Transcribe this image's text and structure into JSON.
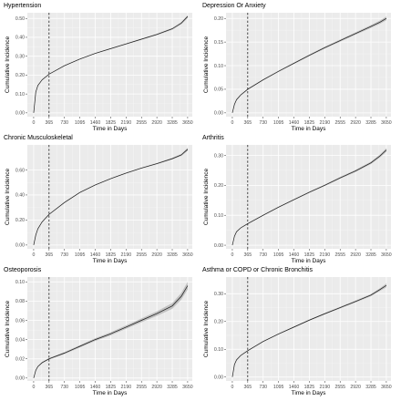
{
  "chart_data": [
    {
      "type": "line",
      "title": "Hypertension",
      "xlabel": "Time in Days",
      "ylabel": "Cumulative Incidence",
      "x_ticks": [
        0,
        365,
        730,
        1095,
        1460,
        1825,
        2190,
        2555,
        2920,
        3285,
        3650
      ],
      "y_ticks": [
        0.0,
        0.1,
        0.2,
        0.3,
        0.4,
        0.5
      ],
      "y_tick_labels": [
        "0.00",
        "0.10",
        "0.20",
        "0.30",
        "0.40",
        "0.50"
      ],
      "xlim": [
        -150,
        3760
      ],
      "ylim": [
        -0.02,
        0.53
      ],
      "vline_x": 365,
      "grid": true,
      "x": [
        0,
        50,
        100,
        200,
        365,
        730,
        1095,
        1460,
        1825,
        2190,
        2555,
        2920,
        3285,
        3500,
        3650
      ],
      "y": [
        0.0,
        0.11,
        0.145,
        0.175,
        0.205,
        0.25,
        0.285,
        0.315,
        0.34,
        0.365,
        0.39,
        0.415,
        0.445,
        0.475,
        0.51
      ],
      "ci_halfwidth": [
        0.0,
        0.002,
        0.002,
        0.002,
        0.002,
        0.002,
        0.002,
        0.002,
        0.002,
        0.003,
        0.003,
        0.004,
        0.005,
        0.006,
        0.008
      ]
    },
    {
      "type": "line",
      "title": "Depression Or Anxiety",
      "xlabel": "Time in Days",
      "ylabel": "Cumulative Incidence",
      "x_ticks": [
        0,
        365,
        730,
        1095,
        1460,
        1825,
        2190,
        2555,
        2920,
        3285,
        3650
      ],
      "y_ticks": [
        0.0,
        0.05,
        0.1,
        0.15,
        0.2
      ],
      "y_tick_labels": [
        "0.00",
        "0.05",
        "0.10",
        "0.15",
        "0.20"
      ],
      "xlim": [
        -150,
        3760
      ],
      "ylim": [
        -0.008,
        0.212
      ],
      "vline_x": 365,
      "grid": true,
      "x": [
        0,
        50,
        100,
        200,
        365,
        730,
        1095,
        1460,
        1825,
        2190,
        2555,
        2920,
        3285,
        3500,
        3650
      ],
      "y": [
        0.0,
        0.018,
        0.028,
        0.038,
        0.05,
        0.07,
        0.088,
        0.105,
        0.122,
        0.138,
        0.153,
        0.168,
        0.183,
        0.192,
        0.2
      ],
      "ci_halfwidth": [
        0.0,
        0.0008,
        0.0008,
        0.0009,
        0.001,
        0.0012,
        0.0014,
        0.0016,
        0.0018,
        0.002,
        0.0022,
        0.0025,
        0.003,
        0.0035,
        0.004
      ]
    },
    {
      "type": "line",
      "title": "Chronic Musculoskeletal",
      "xlabel": "Time in Days",
      "ylabel": "Cumulative Incidence",
      "x_ticks": [
        0,
        365,
        730,
        1095,
        1460,
        1825,
        2190,
        2555,
        2920,
        3285,
        3650
      ],
      "y_ticks": [
        0.0,
        0.2,
        0.4,
        0.6
      ],
      "y_tick_labels": [
        "0.00",
        "0.20",
        "0.40",
        "0.60"
      ],
      "xlim": [
        -150,
        3760
      ],
      "ylim": [
        -0.03,
        0.8
      ],
      "vline_x": 365,
      "grid": true,
      "x": [
        0,
        50,
        100,
        200,
        365,
        730,
        1095,
        1460,
        1825,
        2190,
        2555,
        2920,
        3285,
        3500,
        3650
      ],
      "y": [
        0.0,
        0.08,
        0.13,
        0.185,
        0.245,
        0.34,
        0.42,
        0.48,
        0.53,
        0.575,
        0.615,
        0.65,
        0.69,
        0.72,
        0.765
      ],
      "ci_halfwidth": [
        0.0,
        0.002,
        0.002,
        0.002,
        0.002,
        0.002,
        0.003,
        0.003,
        0.003,
        0.004,
        0.004,
        0.005,
        0.006,
        0.008,
        0.012
      ]
    },
    {
      "type": "line",
      "title": "Arthritis",
      "xlabel": "Time in Days",
      "ylabel": "Cumulative Incidence",
      "x_ticks": [
        0,
        365,
        730,
        1095,
        1460,
        1825,
        2190,
        2555,
        2920,
        3285,
        3650
      ],
      "y_ticks": [
        0.0,
        0.1,
        0.2,
        0.3
      ],
      "y_tick_labels": [
        "0.00",
        "0.10",
        "0.20",
        "0.30"
      ],
      "xlim": [
        -150,
        3760
      ],
      "ylim": [
        -0.012,
        0.335
      ],
      "vline_x": 365,
      "grid": true,
      "x": [
        0,
        50,
        100,
        200,
        365,
        730,
        1095,
        1460,
        1825,
        2190,
        2555,
        2920,
        3285,
        3500,
        3650
      ],
      "y": [
        0.0,
        0.03,
        0.045,
        0.058,
        0.072,
        0.1,
        0.127,
        0.152,
        0.177,
        0.2,
        0.225,
        0.248,
        0.275,
        0.298,
        0.318
      ],
      "ci_halfwidth": [
        0.0,
        0.0012,
        0.0012,
        0.0012,
        0.0014,
        0.0016,
        0.0018,
        0.002,
        0.0022,
        0.0025,
        0.003,
        0.0035,
        0.004,
        0.005,
        0.006
      ]
    },
    {
      "type": "line",
      "title": "Osteoporosis",
      "xlabel": "Time in Days",
      "ylabel": "Cumulative Incidence",
      "x_ticks": [
        0,
        365,
        730,
        1095,
        1460,
        1825,
        2190,
        2555,
        2920,
        3285,
        3650
      ],
      "y_ticks": [
        0.0,
        0.02,
        0.04,
        0.06,
        0.08,
        0.1
      ],
      "y_tick_labels": [
        "0.00",
        "0.02",
        "0.04",
        "0.06",
        "0.08",
        "0.10"
      ],
      "xlim": [
        -150,
        3760
      ],
      "ylim": [
        -0.003,
        0.105
      ],
      "vline_x": 365,
      "grid": true,
      "x": [
        0,
        50,
        100,
        200,
        365,
        730,
        1095,
        1460,
        1825,
        2190,
        2555,
        2920,
        3285,
        3500,
        3650
      ],
      "y": [
        0.0,
        0.008,
        0.012,
        0.016,
        0.02,
        0.026,
        0.033,
        0.04,
        0.046,
        0.053,
        0.06,
        0.067,
        0.075,
        0.085,
        0.096
      ],
      "ci_halfwidth": [
        0.0,
        0.0004,
        0.0005,
        0.0006,
        0.0008,
        0.001,
        0.0012,
        0.0014,
        0.0016,
        0.0018,
        0.002,
        0.0024,
        0.003,
        0.0035,
        0.004
      ]
    },
    {
      "type": "line",
      "title": "Asthma or COPD or Chronic Bronchitis",
      "xlabel": "Time in Days",
      "ylabel": "Cumulative Incidence",
      "x_ticks": [
        0,
        365,
        730,
        1095,
        1460,
        1825,
        2190,
        2555,
        2920,
        3285,
        3650
      ],
      "y_ticks": [
        0.0,
        0.1,
        0.2,
        0.3
      ],
      "y_tick_labels": [
        "0.00",
        "0.10",
        "0.20",
        "0.30"
      ],
      "xlim": [
        -150,
        3760
      ],
      "ylim": [
        -0.014,
        0.36
      ],
      "vline_x": 365,
      "grid": true,
      "x": [
        0,
        50,
        100,
        200,
        365,
        730,
        1095,
        1460,
        1825,
        2190,
        2555,
        2920,
        3285,
        3500,
        3650
      ],
      "y": [
        0.0,
        0.045,
        0.062,
        0.078,
        0.095,
        0.128,
        0.155,
        0.18,
        0.205,
        0.228,
        0.25,
        0.272,
        0.295,
        0.315,
        0.33
      ],
      "ci_halfwidth": [
        0.0,
        0.0012,
        0.0012,
        0.0012,
        0.0014,
        0.0016,
        0.0018,
        0.002,
        0.0022,
        0.0025,
        0.003,
        0.0035,
        0.004,
        0.005,
        0.007
      ]
    }
  ]
}
